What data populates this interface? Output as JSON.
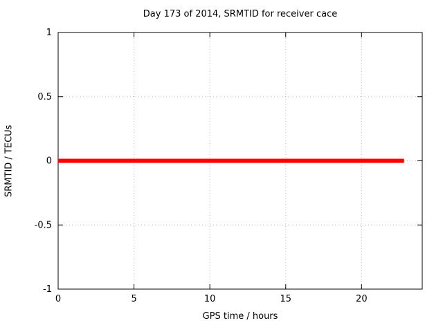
{
  "chart_data": {
    "type": "line",
    "title": "Day 173 of 2014, SRMTID for receiver cace",
    "xlabel": "GPS time / hours",
    "ylabel": "SRMTID / TECUs",
    "xlim": [
      0,
      24
    ],
    "ylim": [
      -1,
      1
    ],
    "xtick_values": [
      0,
      5,
      10,
      15,
      20
    ],
    "xtick_labels": [
      "0",
      "5",
      "10",
      "15",
      "20"
    ],
    "ytick_values": [
      -1,
      -0.5,
      0,
      0.5,
      1
    ],
    "ytick_labels": [
      "-1",
      "-0.5",
      "0",
      "0.5",
      "1"
    ],
    "grid": true,
    "grid_style": "dotted",
    "series": [
      {
        "name": "SRMTID",
        "x": [
          0,
          22.8
        ],
        "y": [
          0,
          0
        ],
        "color": "#ff0000",
        "linewidth": 6,
        "note": "constant value 0 TECUs from hour 0 to ~22.8"
      }
    ],
    "colors": {
      "background": "#ffffff",
      "border": "#000000",
      "grid": "#b8b8b8",
      "text": "#000000",
      "series": "#ff0000"
    }
  }
}
